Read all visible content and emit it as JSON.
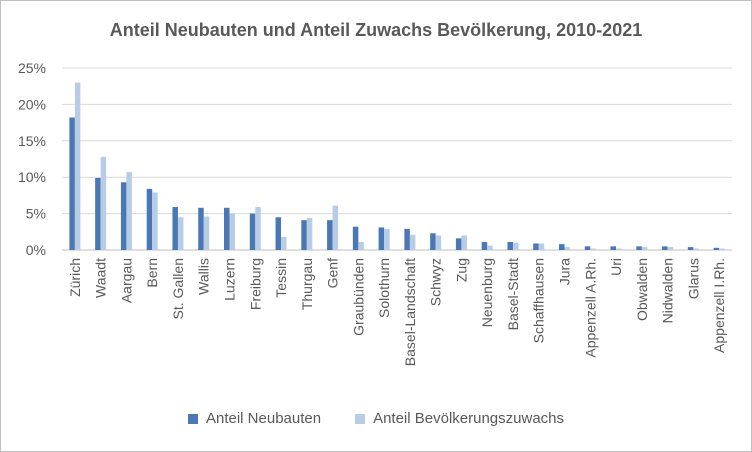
{
  "chart_data": {
    "type": "bar",
    "title": "Anteil Neubauten und Anteil Zuwachs Bevölkerung, 2010-2021",
    "xlabel": "",
    "ylabel": "",
    "ylim": [
      0,
      0.25
    ],
    "yticks": [
      0,
      0.05,
      0.1,
      0.15,
      0.2,
      0.25
    ],
    "ytick_labels": [
      "0%",
      "5%",
      "10%",
      "15%",
      "20%",
      "25%"
    ],
    "grid": true,
    "legend": "bottom",
    "categories": [
      "Zürich",
      "Waadt",
      "Aargau",
      "Bern",
      "St. Gallen",
      "Wallis",
      "Luzern",
      "Freiburg",
      "Tessin",
      "Thurgau",
      "Genf",
      "Graubünden",
      "Solothurn",
      "Basel-Landschaft",
      "Schwyz",
      "Zug",
      "Neuenburg",
      "Basel-Stadt",
      "Schaffhausen",
      "Jura",
      "Appenzell A.Rh.",
      "Uri",
      "Obwalden",
      "Nidwalden",
      "Glarus",
      "Appenzell I.Rh."
    ],
    "series": [
      {
        "name": "Anteil Neubauten",
        "color": "#4a78b5",
        "values": [
          0.182,
          0.099,
          0.093,
          0.084,
          0.059,
          0.058,
          0.058,
          0.05,
          0.045,
          0.041,
          0.041,
          0.032,
          0.031,
          0.029,
          0.023,
          0.016,
          0.011,
          0.011,
          0.009,
          0.008,
          0.005,
          0.005,
          0.005,
          0.005,
          0.004,
          0.003
        ]
      },
      {
        "name": "Anteil Bevölkerungszuwachs",
        "color": "#b8cce4",
        "values": [
          0.23,
          0.128,
          0.107,
          0.079,
          0.045,
          0.046,
          0.05,
          0.059,
          0.018,
          0.044,
          0.061,
          0.011,
          0.029,
          0.021,
          0.02,
          0.02,
          0.006,
          0.01,
          0.009,
          0.004,
          0.002,
          0.002,
          0.004,
          0.004,
          0.002,
          0.002
        ]
      }
    ]
  }
}
